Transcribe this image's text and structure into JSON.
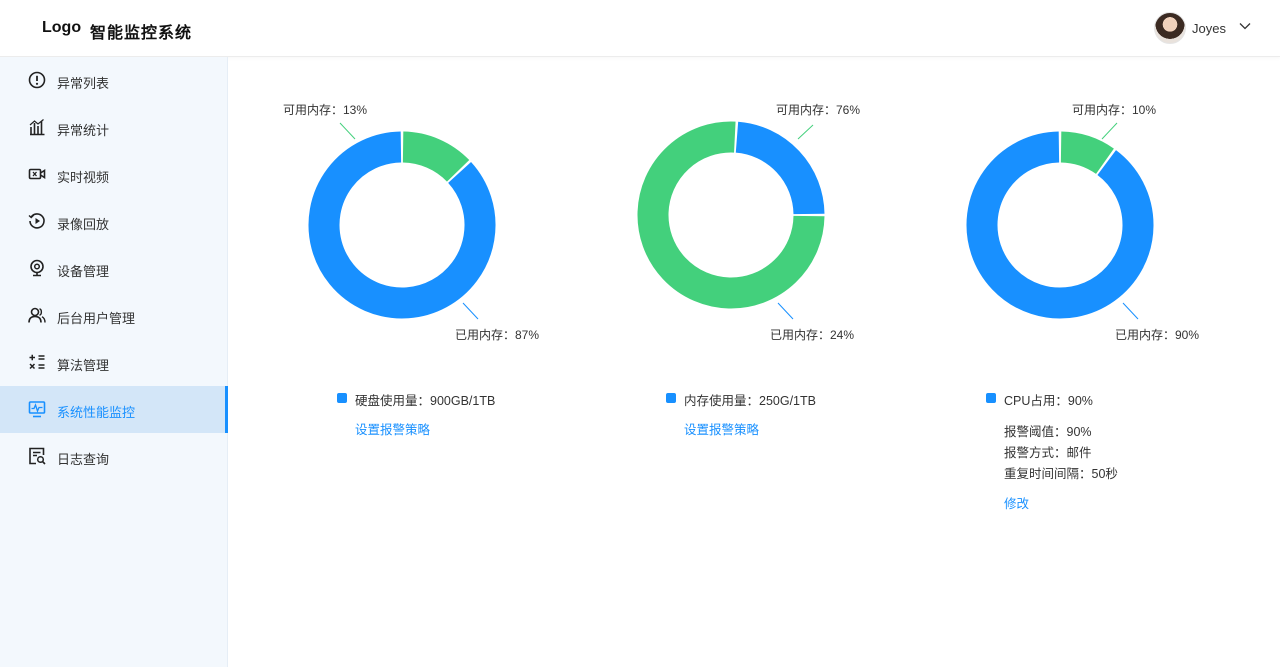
{
  "header": {
    "logo": "Logo",
    "title": "智能监控系统",
    "user": {
      "name": "Joyes"
    }
  },
  "sidebar": {
    "items": [
      {
        "label": "异常列表",
        "icon": "exclamation-circle-icon",
        "active": false
      },
      {
        "label": "异常统计",
        "icon": "bar-chart-icon",
        "active": false
      },
      {
        "label": "实时视频",
        "icon": "video-camera-icon",
        "active": false
      },
      {
        "label": "录像回放",
        "icon": "playback-icon",
        "active": false
      },
      {
        "label": "设备管理",
        "icon": "webcam-icon",
        "active": false
      },
      {
        "label": "后台用户管理",
        "icon": "users-icon",
        "active": false
      },
      {
        "label": "算法管理",
        "icon": "calculator-icon",
        "active": false
      },
      {
        "label": "系统性能监控",
        "icon": "monitor-pulse-icon",
        "active": true
      },
      {
        "label": "日志查询",
        "icon": "log-search-icon",
        "active": false
      }
    ]
  },
  "colors": {
    "used": "#1890ff",
    "available": "#43d07c",
    "accent": "#1890ff"
  },
  "panels": [
    {
      "available_label": "可用内存：13%",
      "used_label": "已用内存：87%",
      "available_pct": 13,
      "used_pct": 87,
      "legend": "硬盘使用量：900GB/1TB",
      "link": "设置报警策略"
    },
    {
      "available_label": "可用内存：76%",
      "used_label": "已用内存：24%",
      "available_pct": 76,
      "used_pct": 24,
      "legend": "内存使用量：250G/1TB",
      "link": "设置报警策略"
    },
    {
      "available_label": "可用内存：10%",
      "used_label": "已用内存：90%",
      "available_pct": 10,
      "used_pct": 90,
      "legend": "CPU占用：90%",
      "details": [
        "报警阈值：90%",
        "报警方式：邮件",
        "重复时间间隔：50秒"
      ],
      "link": "修改"
    }
  ]
}
